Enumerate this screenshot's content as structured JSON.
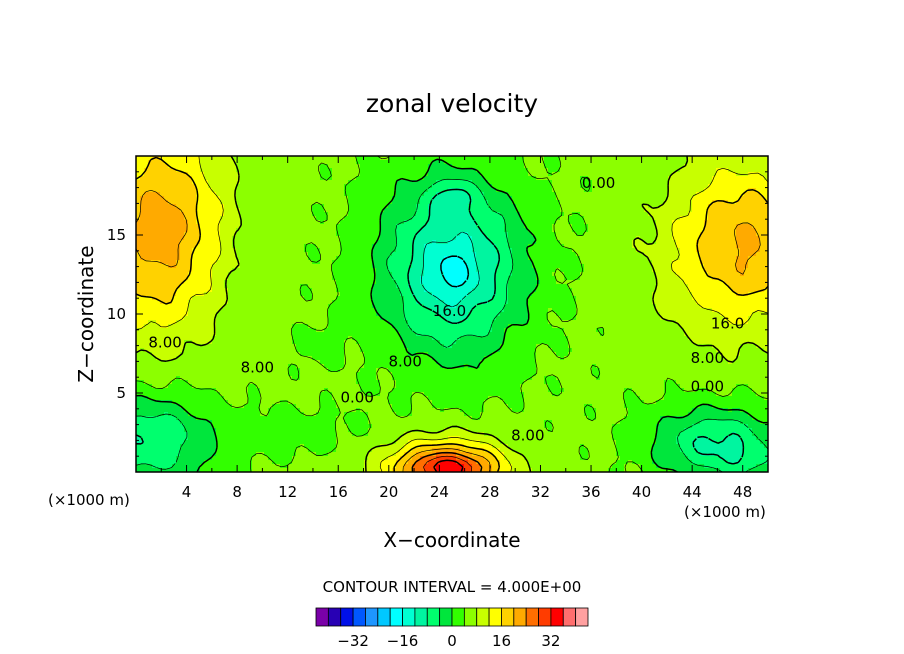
{
  "chart_data": {
    "type": "heatmap",
    "title": "zonal velocity",
    "xlabel": "X−coordinate",
    "ylabel": "Z−coordinate",
    "x_unit_left": "(×1000 m)",
    "x_unit_right": "(×1000 m)",
    "xlim": [
      0,
      50
    ],
    "ylim": [
      0,
      20
    ],
    "x_ticks": [
      4,
      8,
      12,
      16,
      20,
      24,
      28,
      32,
      36,
      40,
      44,
      48
    ],
    "y_ticks": [
      5,
      10,
      15
    ],
    "contour_interval_text": "CONTOUR INTERVAL = 4.000E+00",
    "contour_interval": 4,
    "contour_labels": [
      {
        "text": "8.00",
        "x": 2.3,
        "y": 8.2
      },
      {
        "text": "8.00",
        "x": 9.6,
        "y": 6.6
      },
      {
        "text": "0.00",
        "x": 17.5,
        "y": 4.7
      },
      {
        "text": "8.00",
        "x": 21.3,
        "y": 7.0
      },
      {
        "text": "16.0",
        "x": 24.8,
        "y": 10.2
      },
      {
        "text": "8.00",
        "x": 31.0,
        "y": 2.3
      },
      {
        "text": "0.00",
        "x": 36.6,
        "y": 18.3
      },
      {
        "text": "16.0",
        "x": 46.8,
        "y": 9.4
      },
      {
        "text": "8.00",
        "x": 45.2,
        "y": 7.2
      },
      {
        "text": "0.00",
        "x": 45.2,
        "y": 5.4
      }
    ],
    "colorbar": {
      "levels": [
        -40,
        -36,
        -32,
        -28,
        -24,
        -20,
        -16,
        -12,
        -8,
        -4,
        0,
        4,
        8,
        12,
        16,
        20,
        24,
        28,
        32,
        36,
        40
      ],
      "tick_values": [
        -32,
        -16,
        0,
        16,
        32
      ],
      "tick_labels": [
        "−32",
        "−16",
        "0",
        "16",
        "32"
      ],
      "colors": [
        "#7a00a8",
        "#2800b4",
        "#0010e8",
        "#0058ff",
        "#1e96ff",
        "#00c8ff",
        "#00ffff",
        "#00ffd2",
        "#00f5a0",
        "#00ff6e",
        "#00e63c",
        "#32ff00",
        "#8cff00",
        "#c8ff00",
        "#ffff00",
        "#ffd200",
        "#ffaa00",
        "#ff6e00",
        "#ff3c00",
        "#ff0000",
        "#ff6e6e",
        "#ffa0a0"
      ]
    }
  }
}
